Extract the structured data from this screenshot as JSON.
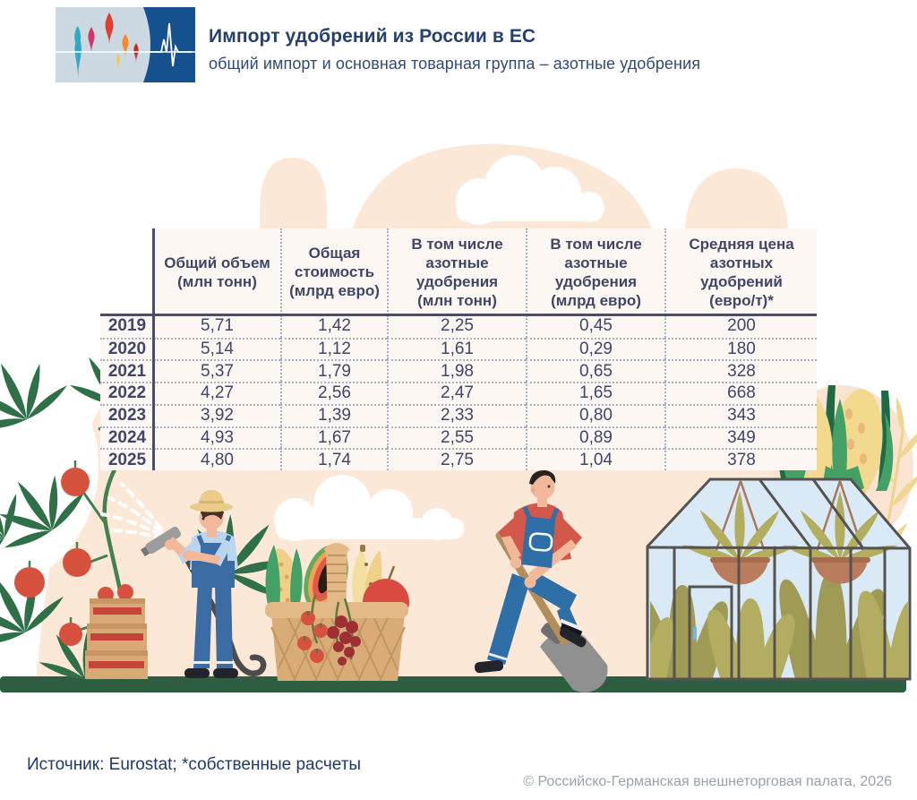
{
  "header": {
    "title": "Импорт удобрений из России в ЕС",
    "subtitle": "общий импорт и основная товарная группа – азотные удобрения"
  },
  "logo": {
    "left_icon": "kremlin-domes-icon",
    "right_icon": "heartbeat-pulse-icon"
  },
  "chart_data": {
    "type": "table",
    "title": "Импорт удобрений из России в ЕС",
    "subtitle": "общий импорт и основная товарная группа – азотные удобрения",
    "categories": [
      "2019",
      "2020",
      "2021",
      "2022",
      "2023",
      "2024",
      "2025"
    ],
    "columns": [
      {
        "header_lines": [
          "Общий объем",
          "(млн тонн)"
        ],
        "values": [
          "5,71",
          "5,14",
          "5,37",
          "4,27",
          "3,92",
          "4,93",
          "4,80"
        ]
      },
      {
        "header_lines": [
          "Общая",
          "стоимость",
          "(млрд евро)"
        ],
        "values": [
          "1,42",
          "1,12",
          "1,79",
          "2,56",
          "1,39",
          "1,67",
          "1,74"
        ]
      },
      {
        "header_lines": [
          "В том числе",
          "азотные",
          "удобрения",
          "(млн тонн)"
        ],
        "values": [
          "2,25",
          "1,61",
          "1,98",
          "2,47",
          "2,33",
          "2,55",
          "2,75"
        ]
      },
      {
        "header_lines": [
          "В том числе",
          "азотные",
          "удобрения",
          "(млрд евро)"
        ],
        "values": [
          "0,45",
          "0,29",
          "0,65",
          "1,65",
          "0,80",
          "0,89",
          "1,04"
        ]
      },
      {
        "header_lines": [
          "Средняя цена",
          "азотных",
          "удобрений",
          "(евро/т)*"
        ],
        "values": [
          "200",
          "180",
          "328",
          "668",
          "343",
          "349",
          "378"
        ]
      }
    ]
  },
  "footer": {
    "source": "Источник: Eurostat; *собственные расчеты",
    "copyright": "© Российско-Германская внешнеторговая палата, 2026"
  },
  "colors": {
    "title_navy": "#27406f",
    "table_text": "#414566",
    "table_line": "#4a4e68",
    "peach": "#fce8d7",
    "ground_green": "#2e5d42",
    "logo_blue": "#15508f",
    "copyright_gray": "#9aa1ab"
  },
  "illustrations": [
    "clouds",
    "tomato-plant",
    "tomato-crates",
    "farmer-watering",
    "harvest-basket",
    "farmer-digging",
    "greenhouse",
    "corn-cobs",
    "wheat-branch"
  ]
}
